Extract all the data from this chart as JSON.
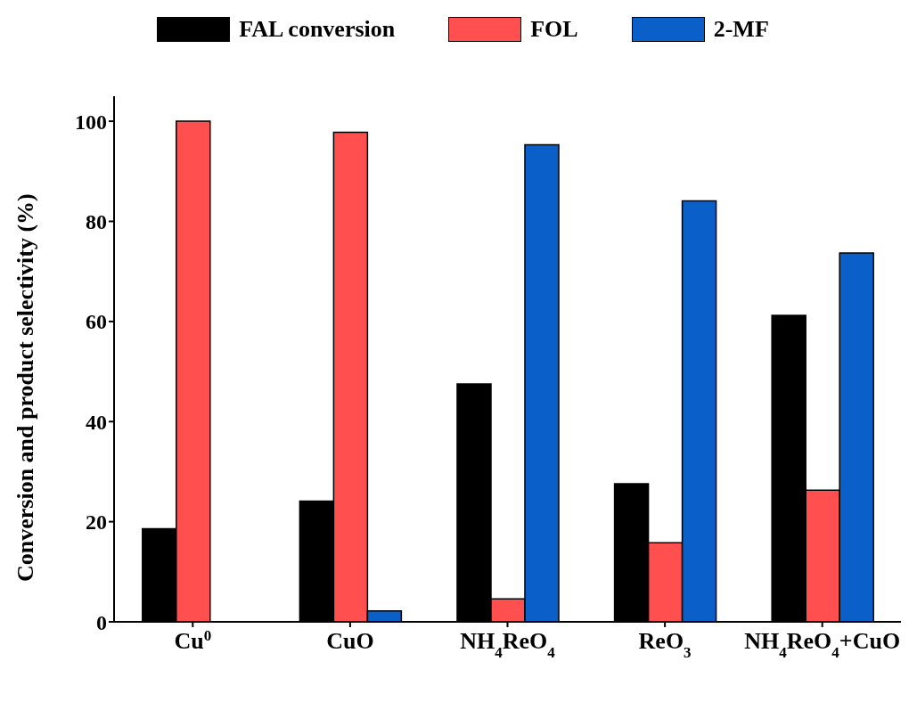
{
  "chart_data": {
    "type": "bar",
    "ylabel": "Conversion and product selectivity (%)",
    "categories": [
      "Cu$^{0}$",
      "CuO",
      "NH$_{4}$ReO$_{4}$",
      "ReO$_{3}$",
      "NH$_{4}$ReO$_{4}$+CuO"
    ],
    "series": [
      {
        "name": "FAL conversion",
        "color": "#000000",
        "values": [
          18.6,
          24.1,
          47.5,
          27.6,
          61.2
        ]
      },
      {
        "name": "FOL",
        "color": "#ff4f4f",
        "values": [
          100,
          97.8,
          4.6,
          15.8,
          26.3
        ]
      },
      {
        "name": "2-MF",
        "color": "#0a5fc8",
        "values": [
          0,
          2.2,
          95.3,
          84.1,
          73.7
        ]
      }
    ],
    "ylim": [
      0,
      105
    ],
    "yticks": [
      0,
      20,
      40,
      60,
      80,
      100
    ],
    "grid": false,
    "legend": "top"
  }
}
